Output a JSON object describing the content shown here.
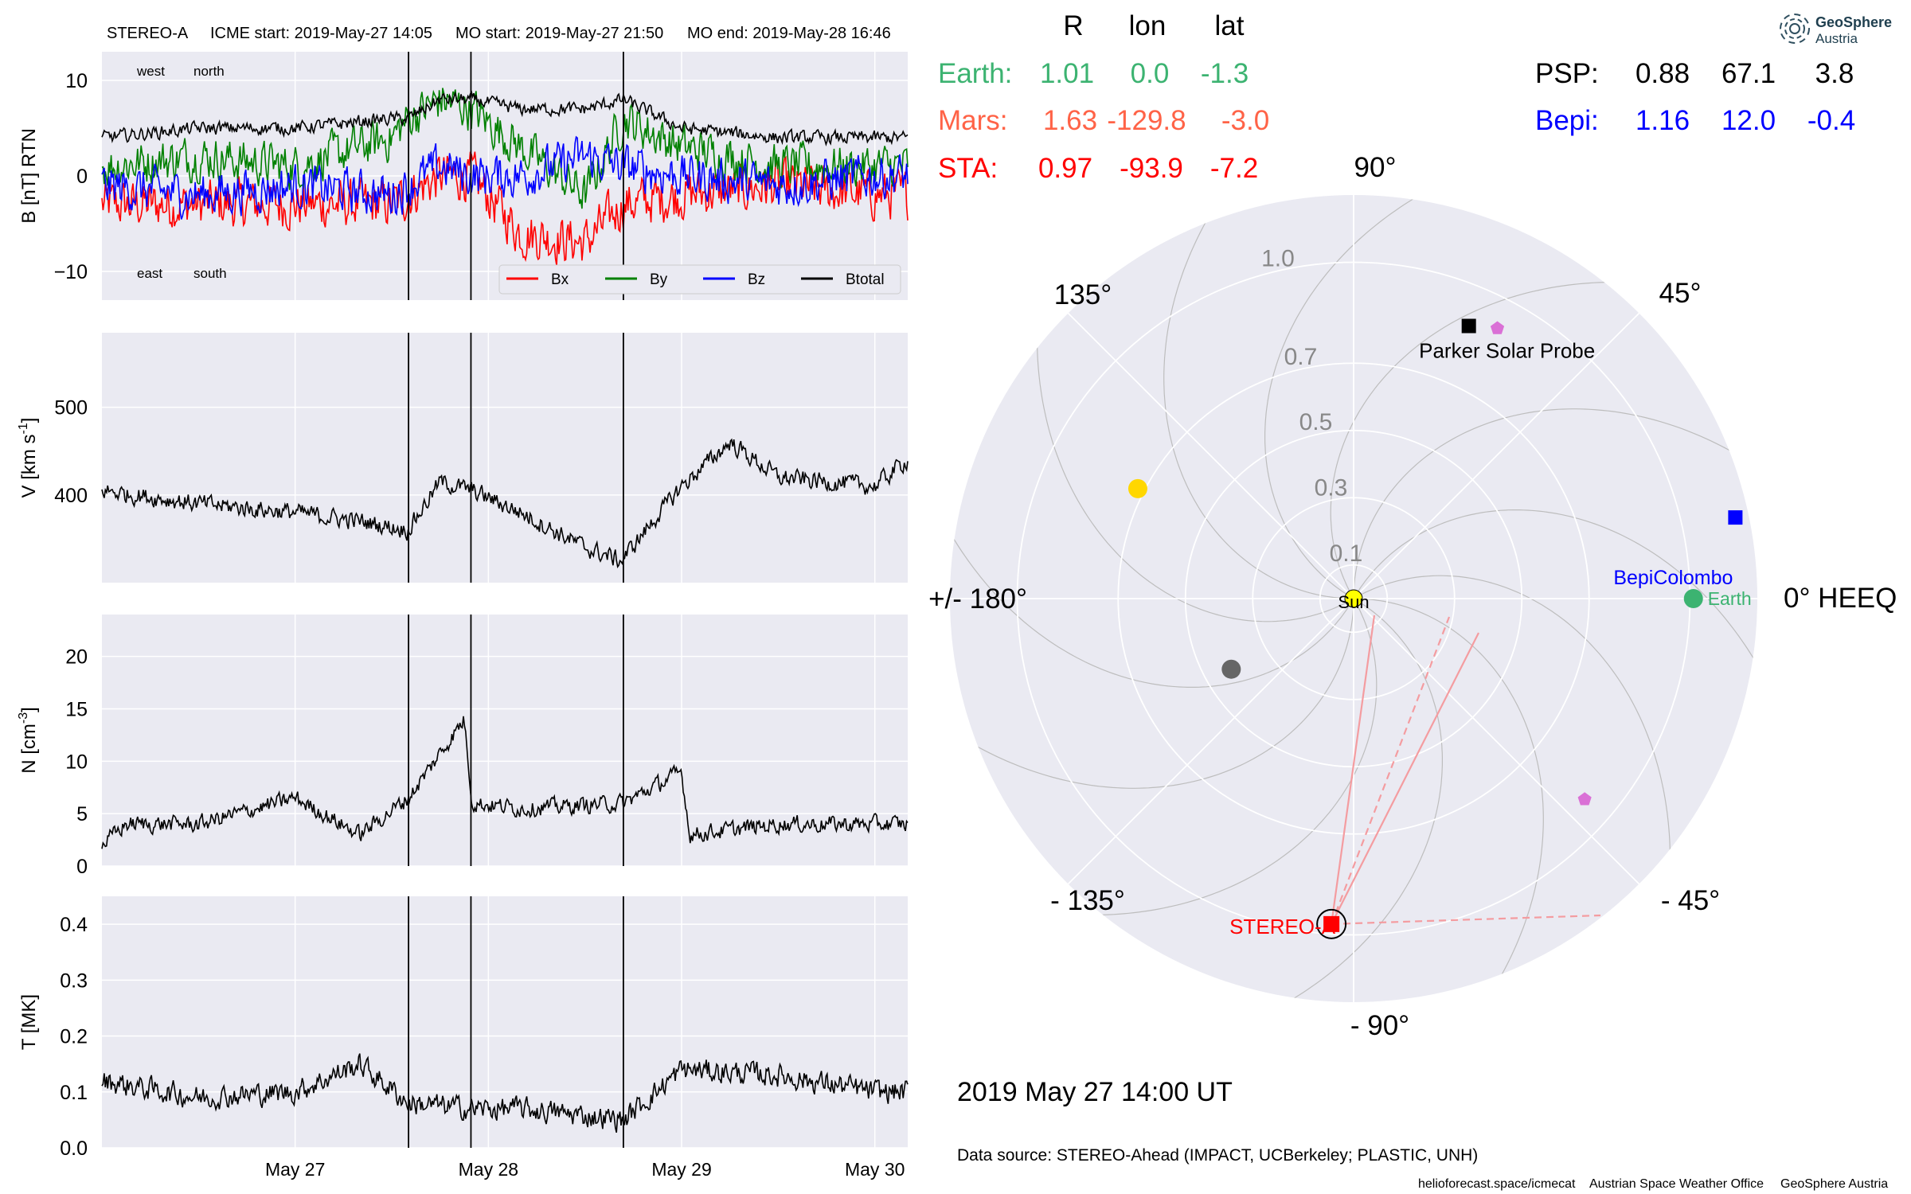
{
  "header": {
    "spacecraft": "STEREO-A",
    "icme_start": "ICME start: 2019-May-27 14:05",
    "mo_start": "MO start: 2019-May-27 21:50",
    "mo_end": "MO end: 2019-May-28 16:46"
  },
  "colors": {
    "panel_bg": "#eaeaf2",
    "grid": "#ffffff",
    "bx": "#ff0000",
    "by": "#008000",
    "bz": "#0000ff",
    "btotal": "#000000",
    "earth": "#3cb371",
    "mars": "#ff6347",
    "sta": "#ff0000",
    "psp": "#000000",
    "bepi": "#0000ff",
    "sun": "#ffff00",
    "mercury": "#666666",
    "venus": "#ffd700",
    "solo": "#da70d6",
    "fieldline": "#c0c0c0",
    "cme": "#f49ca0"
  },
  "panels": {
    "b": {
      "ylabel": "B [nT] RTN",
      "ann_west": "west",
      "ann_north": "north",
      "ann_east": "east",
      "ann_south": "south",
      "legend": [
        "Bx",
        "By",
        "Bz",
        "Btotal"
      ]
    },
    "v": {
      "ylabel_prefix": "V [km s",
      "ylabel_sup": "-1",
      "ylabel_suffix": "]"
    },
    "n": {
      "ylabel_prefix": "N [cm",
      "ylabel_sup": "-3",
      "ylabel_suffix": "]"
    },
    "t": {
      "ylabel": "T [MK]"
    }
  },
  "x_ticks": [
    "May 27",
    "May 28",
    "May 29",
    "May 30"
  ],
  "chart_data": [
    {
      "type": "line",
      "title": "B [nT] RTN",
      "x_range": [
        "2019-05-26 00:00",
        "2019-05-30 04:05"
      ],
      "ylim": [
        -13,
        13
      ],
      "y_ticks": [
        -10,
        0,
        10
      ],
      "event_lines": [
        "2019-05-27 14:05",
        "2019-05-27 21:50",
        "2019-05-28 16:46"
      ],
      "series": [
        {
          "name": "Bx",
          "x": [
            "05-26 00:00",
            "05-26 12:00",
            "05-27 00:00",
            "05-27 12:00",
            "05-27 14:05",
            "05-27 18:00",
            "05-27 21:50",
            "05-28 04:00",
            "05-28 12:00",
            "05-28 16:46",
            "05-29 00:00",
            "05-29 12:00",
            "05-30 00:00",
            "05-30 04:00"
          ],
          "y": [
            -3,
            -3,
            -3,
            -3,
            -2,
            0,
            0,
            -6,
            -7,
            -3,
            -2,
            -1,
            -2,
            -2
          ]
        },
        {
          "name": "By",
          "x": [
            "05-26 00:00",
            "05-26 12:00",
            "05-27 00:00",
            "05-27 12:00",
            "05-27 14:05",
            "05-27 18:00",
            "05-27 21:50",
            "05-28 04:00",
            "05-28 12:00",
            "05-28 16:46",
            "05-29 00:00",
            "05-29 12:00",
            "05-30 00:00",
            "05-30 04:00"
          ],
          "y": [
            1,
            2,
            1,
            4,
            6,
            8,
            7,
            3,
            -2,
            6,
            3,
            1,
            1,
            1
          ]
        },
        {
          "name": "Bz",
          "x": [
            "05-26 00:00",
            "05-26 12:00",
            "05-27 00:00",
            "05-27 12:00",
            "05-27 14:05",
            "05-27 18:00",
            "05-27 21:50",
            "05-28 04:00",
            "05-28 12:00",
            "05-28 16:46",
            "05-29 00:00",
            "05-29 12:00",
            "05-30 00:00",
            "05-30 04:00"
          ],
          "y": [
            -1,
            -2,
            -1,
            -2,
            -1,
            1,
            0,
            0,
            2,
            1,
            0,
            -1,
            0,
            0
          ]
        },
        {
          "name": "Btotal",
          "x": [
            "05-26 00:00",
            "05-26 12:00",
            "05-27 00:00",
            "05-27 12:00",
            "05-27 14:05",
            "05-27 18:00",
            "05-27 21:50",
            "05-28 04:00",
            "05-28 12:00",
            "05-28 16:46",
            "05-29 00:00",
            "05-29 12:00",
            "05-30 00:00",
            "05-30 04:00"
          ],
          "y": [
            4,
            5,
            5,
            6,
            6,
            8,
            8,
            7,
            7,
            8,
            5,
            4,
            4,
            4
          ]
        }
      ]
    },
    {
      "type": "line",
      "title": "V [km s-1]",
      "x_range": [
        "2019-05-26 00:00",
        "2019-05-30 04:05"
      ],
      "ylim": [
        300,
        585
      ],
      "y_ticks": [
        400,
        500
      ],
      "series": [
        {
          "name": "V",
          "x": [
            "05-26 00:00",
            "05-26 12:00",
            "05-27 00:00",
            "05-27 08:00",
            "05-27 14:00",
            "05-27 18:00",
            "05-27 22:00",
            "05-28 04:00",
            "05-28 12:00",
            "05-28 16:30",
            "05-28 20:00",
            "05-29 00:00",
            "05-29 06:00",
            "05-29 12:00",
            "05-30 00:00",
            "05-30 04:00"
          ],
          "y": [
            405,
            390,
            380,
            370,
            360,
            415,
            405,
            380,
            340,
            325,
            365,
            410,
            460,
            420,
            410,
            440
          ]
        }
      ]
    },
    {
      "type": "line",
      "title": "N [cm-3]",
      "x_range": [
        "2019-05-26 00:00",
        "2019-05-30 04:05"
      ],
      "ylim": [
        0,
        24
      ],
      "y_ticks": [
        0,
        5,
        10,
        15,
        20
      ],
      "series": [
        {
          "name": "N",
          "x": [
            "05-26 00:00",
            "05-26 03:00",
            "05-26 12:00",
            "05-27 00:00",
            "05-27 08:00",
            "05-27 14:05",
            "05-27 21:00",
            "05-27 22:00",
            "05-28 04:00",
            "05-28 16:46",
            "05-29 00:00",
            "05-29 01:00",
            "05-29 12:00",
            "05-30 00:00",
            "05-30 04:00"
          ],
          "y": [
            2,
            4,
            4,
            6.5,
            3,
            6.5,
            14,
            6,
            5.5,
            6,
            9,
            3,
            4,
            4,
            4
          ]
        }
      ]
    },
    {
      "type": "line",
      "title": "T [MK]",
      "x_range": [
        "2019-05-26 00:00",
        "2019-05-30 04:05"
      ],
      "ylim": [
        0,
        0.45
      ],
      "y_ticks": [
        0.0,
        0.1,
        0.2,
        0.3,
        0.4
      ],
      "series": [
        {
          "name": "T",
          "x": [
            "05-26 00:00",
            "05-26 12:00",
            "05-27 00:00",
            "05-27 08:00",
            "05-27 14:05",
            "05-27 22:00",
            "05-28 04:00",
            "05-28 16:46",
            "05-29 00:00",
            "05-29 12:00",
            "05-30 00:00",
            "05-30 04:00"
          ],
          "y": [
            0.12,
            0.09,
            0.1,
            0.15,
            0.08,
            0.07,
            0.07,
            0.05,
            0.14,
            0.13,
            0.1,
            0.1
          ]
        }
      ]
    },
    {
      "type": "scatter",
      "subtype": "polar",
      "title": "0° HEEQ",
      "r_ticks": [
        "0.1",
        "0.3",
        "0.5",
        "0.7",
        "1.0"
      ],
      "angle_labels": {
        "a0": "0° HEEQ",
        "a45": "45°",
        "a90": "90°",
        "a135": "135°",
        "a180": "+/- 180°",
        "am135": "- 135°",
        "am90": "- 90°",
        "am45": "- 45°"
      },
      "objects": [
        {
          "name": "Sun",
          "r": 0.0,
          "lon": 0.0
        },
        {
          "name": "Earth",
          "r": 1.01,
          "lon": 0.0
        },
        {
          "name": "BepiColombo",
          "r": 1.16,
          "lon": 12.0
        },
        {
          "name": "Parker Solar Probe",
          "r": 0.88,
          "lon": 67.1
        },
        {
          "name": "STEREO-A",
          "r": 0.97,
          "lon": -93.9
        },
        {
          "name": "",
          "r": 0.72,
          "lon": 153
        },
        {
          "name": "",
          "r": 0.42,
          "lon": -150
        },
        {
          "name": "",
          "r": 0.91,
          "lon": 62
        },
        {
          "name": "",
          "r": 0.91,
          "lon": -41
        }
      ]
    }
  ],
  "positions": {
    "header": {
      "r": "R",
      "lon": "lon",
      "lat": "lat"
    },
    "rows": [
      {
        "name": "Earth:",
        "r": "1.01",
        "lon": "0.0",
        "lat": "-1.3"
      },
      {
        "name": "Mars:",
        "r": "1.63",
        "lon": "-129.8",
        "lat": "-3.0"
      },
      {
        "name": "STA:",
        "r": "0.97",
        "lon": "-93.9",
        "lat": "-7.2"
      },
      {
        "name": "PSP:",
        "r": "0.88",
        "lon": "67.1",
        "lat": "3.8"
      },
      {
        "name": "Bepi:",
        "r": "1.16",
        "lon": "12.0",
        "lat": "-0.4"
      }
    ]
  },
  "polar_labels": {
    "sun": "Sun",
    "earth": "Earth",
    "bepi": "BepiColombo",
    "psp": "Parker Solar Probe",
    "sta": "STEREO-A"
  },
  "date_text": "2019 May 27  14:00 UT",
  "data_source": "Data source: STEREO-Ahead (IMPACT, UCBerkeley; PLASTIC, UNH)",
  "footer": {
    "url": "helioforecast.space/icmecat",
    "office": "Austrian Space Weather Office",
    "org": "GeoSphere Austria"
  },
  "logo": {
    "line1": "GeoSphere",
    "line2": "Austria"
  }
}
